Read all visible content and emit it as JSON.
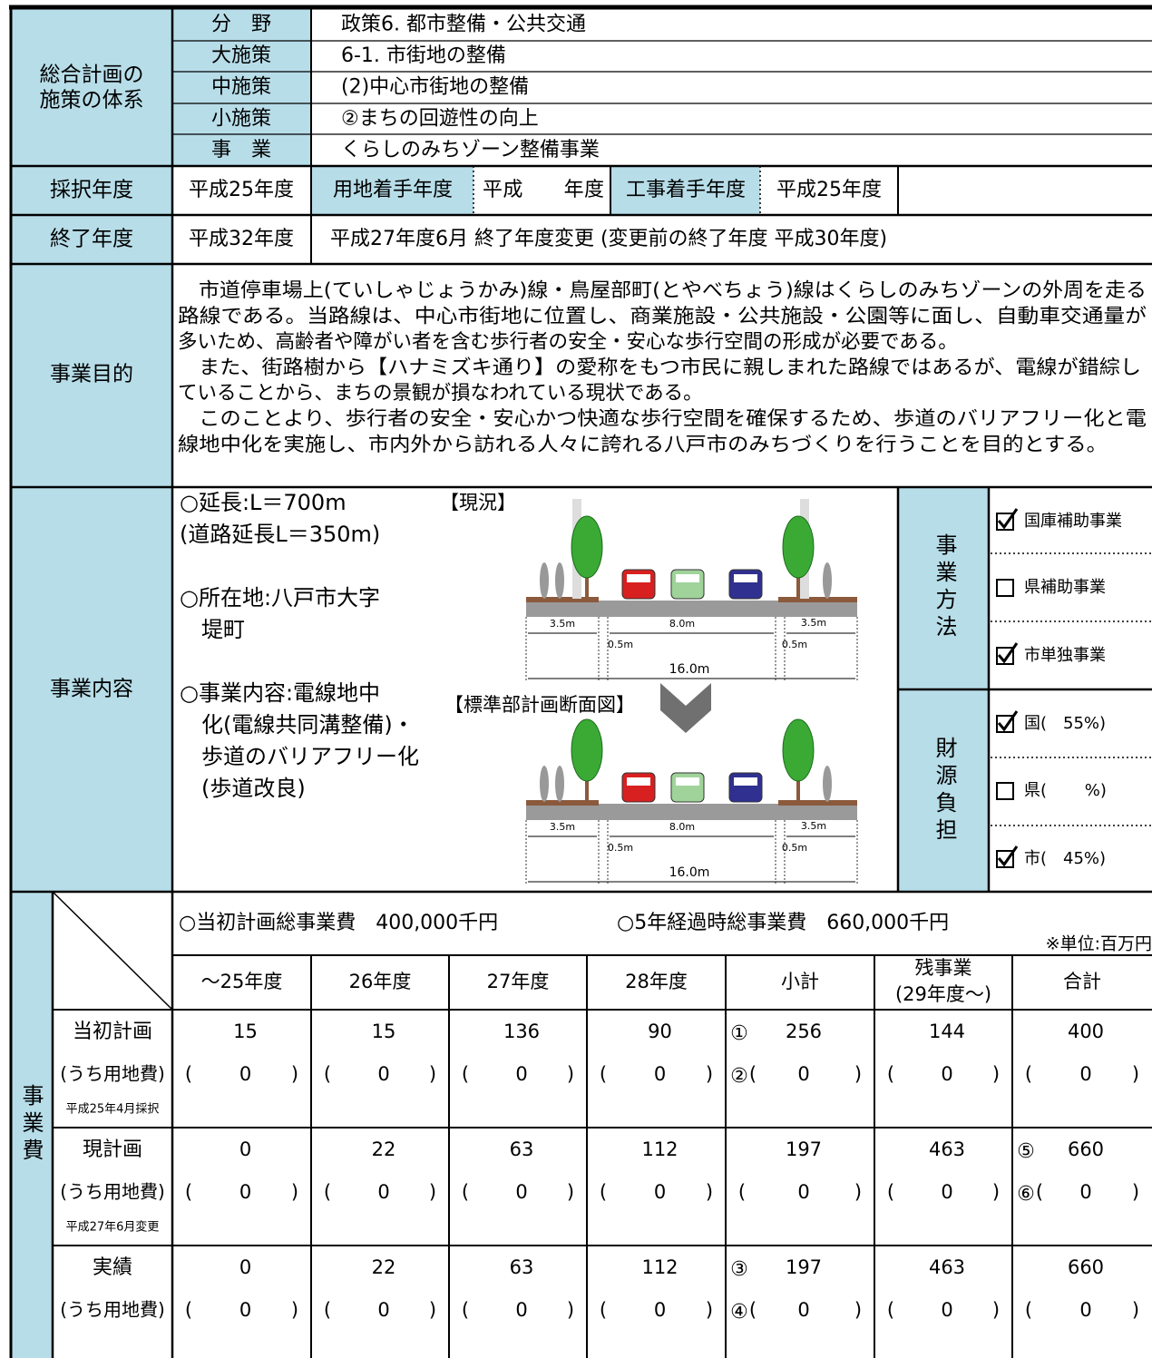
{
  "system": {
    "label": [
      "総合計画の",
      "施策の体系"
    ],
    "rows": [
      {
        "key": "分　野",
        "value": "政策6. 都市整備・公共交通"
      },
      {
        "key": "大施策",
        "value": "6-1. 市街地の整備"
      },
      {
        "key": "中施策",
        "value": "(2)中心市街地の整備"
      },
      {
        "key": "小施策",
        "value": "②まちの回遊性の向上"
      },
      {
        "key": "事　業",
        "value": "くらしのみちゾーン整備事業"
      }
    ]
  },
  "adoption": {
    "label": "採択年度",
    "value": "平成25年度",
    "land_label": "用地着手年度",
    "land_value": "平成　　年度",
    "work_label": "工事着手年度",
    "work_value": "平成25年度"
  },
  "end": {
    "label": "終了年度",
    "value": "平成32年度",
    "note": "平成27年度6月 終了年度変更 (変更前の終了年度 平成30年度)"
  },
  "purpose": {
    "label": "事業目的",
    "lines": [
      "　市道停車場上(ていしゃじょうかみ)線・鳥屋部町(とやべちょう)線はくらしのみちゾーンの外周を走る",
      "路線である。当路線は、中心市街地に位置し、商業施設・公共施設・公園等に面し、自動車交通量が",
      "多いため、高齢者や障がい者を含む歩行者の安全・安心な歩行空間の形成が必要である。",
      "　また、街路樹から【ハナミズキ通り】の愛称をもつ市民に親しまれた路線ではあるが、電線が錯綜し",
      "ていることから、まちの景観が損なわれている現状である。",
      "　このことより、歩行者の安全・安心かつ快適な歩行空間を確保するため、歩道のバリアフリー化と電",
      "線地中化を実施し、市内外から訪れる人々に誇れる八戸市のみちづくりを行うことを目的とする。"
    ]
  },
  "content": {
    "label": "事業内容",
    "items": [
      "○延長:L＝700m",
      "(道路延長L＝350m)",
      "○所在地:八戸市大字",
      "　堤町",
      "○事業内容:電線地中",
      "　化(電線共同溝整備)・",
      "　歩道のバリアフリー化",
      "　(歩道改良)"
    ],
    "diagrams": [
      {
        "caption": "【現況】",
        "dims": [
          "3.5m",
          "8.0m",
          "3.5m",
          "0.5m",
          "0.5m",
          "16.0m"
        ]
      },
      {
        "caption": "【標準部計画断面図】",
        "dims": [
          "3.5m",
          "8.0m",
          "3.5m",
          "0.5m",
          "0.5m",
          "16.0m"
        ]
      }
    ],
    "method": {
      "label": "事業方法",
      "options": [
        {
          "checked": true,
          "text": "国庫補助事業"
        },
        {
          "checked": false,
          "text": "県補助事業"
        },
        {
          "checked": true,
          "text": "市単独事業"
        }
      ]
    },
    "funding": {
      "label": "財源負担",
      "options": [
        {
          "checked": true,
          "text": "国(　55%)"
        },
        {
          "checked": false,
          "text": "県(　　 %)"
        },
        {
          "checked": true,
          "text": "市(　45%)"
        }
      ]
    }
  },
  "cost": {
    "label": "事業費",
    "initial_total": "○当初計画総事業費　400,000千円",
    "five_year_total": "○5年経過時総事業費　660,000千円",
    "unit": "※単位:百万円",
    "paren_open": "(",
    "paren_close": ")",
    "columns": [
      "～25年度",
      "26年度",
      "27年度",
      "28年度",
      "小計",
      [
        "残事業",
        "(29年度～)"
      ],
      "合計"
    ],
    "rows": [
      {
        "label": "当初計画",
        "sub": "(うち用地費)",
        "note": "平成25年4月採択",
        "values": [
          15,
          15,
          136,
          90,
          256,
          144,
          400
        ],
        "land": [
          0,
          0,
          0,
          0,
          0,
          0,
          0
        ],
        "value_marks": [
          null,
          null,
          null,
          null,
          "①",
          null,
          null
        ],
        "land_marks": [
          null,
          null,
          null,
          null,
          "②",
          null,
          null
        ]
      },
      {
        "label": "現計画",
        "sub": "(うち用地費)",
        "note": "平成27年6月変更",
        "values": [
          0,
          22,
          63,
          112,
          197,
          463,
          660
        ],
        "land": [
          0,
          0,
          0,
          0,
          0,
          0,
          0
        ],
        "value_marks": [
          null,
          null,
          null,
          null,
          null,
          null,
          "⑤"
        ],
        "land_marks": [
          null,
          null,
          null,
          null,
          null,
          null,
          "⑥"
        ]
      },
      {
        "label": "実績",
        "sub": "(うち用地費)",
        "values": [
          0,
          22,
          63,
          112,
          197,
          463,
          660
        ],
        "land": [
          0,
          0,
          0,
          0,
          0,
          0,
          0
        ],
        "value_marks": [
          null,
          null,
          null,
          null,
          "③",
          null,
          null
        ],
        "land_marks": [
          null,
          null,
          null,
          null,
          "④",
          null,
          null
        ]
      }
    ]
  }
}
